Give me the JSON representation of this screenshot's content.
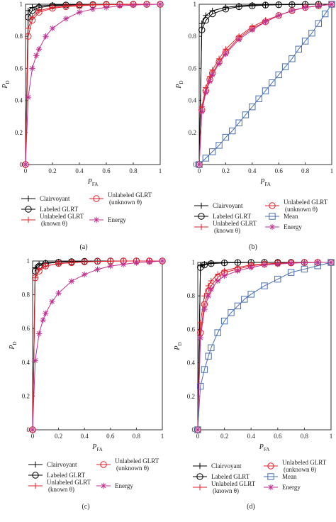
{
  "figure": {
    "panels": [
      {
        "label": "(a)"
      },
      {
        "label": "(b)"
      },
      {
        "label": "(c)"
      },
      {
        "label": "(d)"
      }
    ]
  },
  "chart_data": [
    {
      "type": "line",
      "panel": "(a)",
      "xlabel": "P",
      "xlabel_sub": "FA",
      "ylabel": "P",
      "ylabel_sub": "D",
      "xlim": [
        0,
        1
      ],
      "ylim": [
        0,
        1
      ],
      "grid": false,
      "xticks": [
        "0",
        "0.2",
        "0.4",
        "0.6",
        "0.8",
        "1"
      ],
      "yticks": [
        "0",
        "0.2",
        "0.4",
        "0.6",
        "0.8",
        "1"
      ],
      "legend_position": "below",
      "series": [
        {
          "name": "Clairvoyant",
          "marker": "+",
          "color": "#000000",
          "x": [
            0,
            0.02,
            0.05,
            0.1,
            0.2,
            0.3,
            0.4,
            0.5,
            0.6,
            0.7,
            0.8,
            0.9,
            1
          ],
          "y": [
            0,
            0.96,
            0.98,
            0.99,
            0.995,
            0.997,
            0.998,
            0.999,
            0.999,
            1,
            1,
            1,
            1
          ]
        },
        {
          "name": "Labeled GLRT",
          "marker": "o",
          "color": "#000000",
          "x": [
            0,
            0.02,
            0.05,
            0.1,
            0.2,
            0.3,
            0.4,
            0.5,
            0.6,
            0.7,
            0.8,
            0.9,
            1
          ],
          "y": [
            0,
            0.92,
            0.96,
            0.98,
            0.99,
            0.995,
            0.997,
            0.998,
            0.999,
            1,
            1,
            1,
            1
          ]
        },
        {
          "name": "Unlabeled GLRT (known θ)",
          "marker": "+",
          "color": "#e0202a",
          "x": [
            0,
            0.02,
            0.05,
            0.1,
            0.2,
            0.3,
            0.4,
            0.5,
            0.6,
            0.7,
            0.8,
            0.9,
            1
          ],
          "y": [
            0,
            0.85,
            0.92,
            0.96,
            0.98,
            0.99,
            0.995,
            0.997,
            0.998,
            0.999,
            1,
            1,
            1
          ]
        },
        {
          "name": "Unlabeled GLRT (unknown θ)",
          "marker": "o",
          "color": "#e0202a",
          "x": [
            0,
            0.02,
            0.05,
            0.1,
            0.2,
            0.3,
            0.4,
            0.5,
            0.6,
            0.7,
            0.8,
            0.9,
            1
          ],
          "y": [
            0,
            0.8,
            0.9,
            0.95,
            0.975,
            0.985,
            0.99,
            0.995,
            0.997,
            0.998,
            0.999,
            1,
            1
          ]
        },
        {
          "name": "Energy",
          "marker": "*",
          "color": "#c03090",
          "x": [
            0,
            0.02,
            0.05,
            0.08,
            0.1,
            0.15,
            0.2,
            0.3,
            0.4,
            0.5,
            0.6,
            0.7,
            0.8,
            0.9,
            1
          ],
          "y": [
            0,
            0.42,
            0.6,
            0.68,
            0.72,
            0.8,
            0.85,
            0.91,
            0.95,
            0.97,
            0.98,
            0.99,
            0.995,
            0.998,
            1
          ]
        }
      ]
    },
    {
      "type": "line",
      "panel": "(b)",
      "xlabel": "P",
      "xlabel_sub": "FA",
      "ylabel": "P",
      "ylabel_sub": "D",
      "xlim": [
        0,
        1
      ],
      "ylim": [
        0,
        1
      ],
      "grid": false,
      "xticks": [
        "0",
        "0.2",
        "0.4",
        "0.6",
        "0.8",
        "1"
      ],
      "yticks": [
        "0",
        "0.2",
        "0.4",
        "0.6",
        "0.8",
        "1"
      ],
      "legend_position": "below",
      "series": [
        {
          "name": "Clairvoyant",
          "marker": "+",
          "color": "#000000",
          "x": [
            0,
            0.02,
            0.05,
            0.1,
            0.2,
            0.3,
            0.4,
            0.5,
            0.6,
            0.7,
            0.8,
            0.9,
            1
          ],
          "y": [
            0,
            0.88,
            0.93,
            0.96,
            0.98,
            0.99,
            0.995,
            0.997,
            0.998,
            0.999,
            1,
            1,
            1
          ]
        },
        {
          "name": "Labeled GLRT",
          "marker": "o",
          "color": "#000000",
          "x": [
            0,
            0.02,
            0.05,
            0.1,
            0.2,
            0.3,
            0.4,
            0.5,
            0.6,
            0.7,
            0.8,
            0.9,
            1
          ],
          "y": [
            0,
            0.84,
            0.9,
            0.94,
            0.97,
            0.985,
            0.99,
            0.995,
            0.997,
            0.998,
            0.999,
            1,
            1
          ]
        },
        {
          "name": "Unlabeled GLRT (known θ)",
          "marker": "+",
          "color": "#e0202a",
          "x": [
            0,
            0.02,
            0.05,
            0.08,
            0.1,
            0.15,
            0.2,
            0.3,
            0.4,
            0.5,
            0.6,
            0.7,
            0.8,
            0.9,
            1
          ],
          "y": [
            0,
            0.36,
            0.48,
            0.55,
            0.59,
            0.66,
            0.72,
            0.8,
            0.86,
            0.9,
            0.93,
            0.96,
            0.98,
            0.99,
            1
          ]
        },
        {
          "name": "Unlabeled GLRT (unknown θ)",
          "marker": "o",
          "color": "#e0202a",
          "x": [
            0,
            0.02,
            0.05,
            0.08,
            0.1,
            0.15,
            0.2,
            0.3,
            0.4,
            0.5,
            0.6,
            0.7,
            0.8,
            0.9,
            1
          ],
          "y": [
            0,
            0.34,
            0.46,
            0.53,
            0.57,
            0.64,
            0.7,
            0.79,
            0.85,
            0.89,
            0.93,
            0.96,
            0.98,
            0.99,
            1
          ]
        },
        {
          "name": "Mean",
          "marker": "s",
          "color": "#4a6fb0",
          "x": [
            0,
            0.05,
            0.1,
            0.15,
            0.2,
            0.25,
            0.3,
            0.35,
            0.4,
            0.45,
            0.5,
            0.55,
            0.6,
            0.65,
            0.7,
            0.75,
            0.8,
            0.85,
            0.9,
            0.95,
            1
          ],
          "y": [
            0,
            0.04,
            0.08,
            0.12,
            0.17,
            0.21,
            0.26,
            0.31,
            0.36,
            0.41,
            0.46,
            0.51,
            0.56,
            0.61,
            0.66,
            0.72,
            0.77,
            0.82,
            0.88,
            0.94,
            1
          ]
        },
        {
          "name": "Energy",
          "marker": "*",
          "color": "#c03090",
          "x": [
            0,
            0.02,
            0.05,
            0.08,
            0.1,
            0.15,
            0.2,
            0.3,
            0.4,
            0.5,
            0.6,
            0.7,
            0.8,
            0.9,
            1
          ],
          "y": [
            0,
            0.33,
            0.45,
            0.52,
            0.56,
            0.63,
            0.69,
            0.78,
            0.84,
            0.89,
            0.93,
            0.96,
            0.98,
            0.99,
            1
          ]
        }
      ]
    },
    {
      "type": "line",
      "panel": "(c)",
      "xlabel": "P",
      "xlabel_sub": "FA",
      "ylabel": "P",
      "ylabel_sub": "D",
      "xlim": [
        0,
        1
      ],
      "ylim": [
        0,
        1
      ],
      "grid": false,
      "xticks": [
        "0",
        "0.2",
        "0.4",
        "0.6",
        "0.8",
        "1"
      ],
      "yticks": [
        "0",
        "0.2",
        "0.4",
        "0.6",
        "0.8",
        "1"
      ],
      "legend_position": "below",
      "series": [
        {
          "name": "Clairvoyant",
          "marker": "+",
          "color": "#000000",
          "x": [
            0,
            0.02,
            0.05,
            0.1,
            0.2,
            0.3,
            0.4,
            0.5,
            0.6,
            0.7,
            0.8,
            0.9,
            1
          ],
          "y": [
            0,
            0.96,
            0.98,
            0.99,
            0.995,
            0.997,
            0.998,
            0.999,
            1,
            1,
            1,
            1,
            1
          ]
        },
        {
          "name": "Labeled GLRT",
          "marker": "o",
          "color": "#000000",
          "x": [
            0,
            0.02,
            0.05,
            0.1,
            0.2,
            0.3,
            0.4,
            0.5,
            0.6,
            0.7,
            0.8,
            0.9,
            1
          ],
          "y": [
            0,
            0.94,
            0.97,
            0.985,
            0.993,
            0.996,
            0.998,
            0.999,
            1,
            1,
            1,
            1,
            1
          ]
        },
        {
          "name": "Unlabeled GLRT (known θ)",
          "marker": "+",
          "color": "#e0202a",
          "x": [
            0,
            0.02,
            0.05,
            0.1,
            0.2,
            0.3,
            0.4,
            0.5,
            0.6,
            0.7,
            0.8,
            0.9,
            1
          ],
          "y": [
            0,
            0.9,
            0.95,
            0.97,
            0.985,
            0.99,
            0.995,
            0.997,
            0.999,
            1,
            1,
            1,
            1
          ]
        },
        {
          "name": "Unlabeled GLRT (unknown θ)",
          "marker": "o",
          "color": "#e0202a",
          "x": [
            0,
            0.02,
            0.05,
            0.1,
            0.2,
            0.3,
            0.4,
            0.5,
            0.6,
            0.7,
            0.8,
            0.9,
            1
          ],
          "y": [
            0,
            0.9,
            0.94,
            0.97,
            0.985,
            0.99,
            0.995,
            0.997,
            0.999,
            1,
            1,
            1,
            1
          ]
        },
        {
          "name": "Energy",
          "marker": "*",
          "color": "#c03090",
          "x": [
            0,
            0.02,
            0.05,
            0.08,
            0.1,
            0.15,
            0.2,
            0.3,
            0.4,
            0.5,
            0.6,
            0.7,
            0.8,
            0.9,
            1
          ],
          "y": [
            0,
            0.41,
            0.57,
            0.65,
            0.69,
            0.76,
            0.81,
            0.88,
            0.92,
            0.95,
            0.97,
            0.98,
            0.99,
            0.995,
            1
          ]
        }
      ]
    },
    {
      "type": "line",
      "panel": "(d)",
      "xlabel": "P",
      "xlabel_sub": "FA",
      "ylabel": "P",
      "ylabel_sub": "D",
      "xlim": [
        0,
        1
      ],
      "ylim": [
        0,
        1
      ],
      "grid": false,
      "xticks": [
        "0",
        "0.2",
        "0.4",
        "0.6",
        "0.8",
        "1"
      ],
      "yticks": [
        "0",
        "0.2",
        "0.4",
        "0.6",
        "0.8",
        "1"
      ],
      "legend_position": "below",
      "series": [
        {
          "name": "Clairvoyant",
          "marker": "+",
          "color": "#000000",
          "x": [
            0,
            0.02,
            0.05,
            0.1,
            0.2,
            0.3,
            0.4,
            0.5,
            0.6,
            0.7,
            0.8,
            0.9,
            1
          ],
          "y": [
            0,
            0.98,
            0.99,
            0.995,
            0.998,
            0.999,
            1,
            1,
            1,
            1,
            1,
            1,
            1
          ]
        },
        {
          "name": "Labeled GLRT",
          "marker": "o",
          "color": "#000000",
          "x": [
            0,
            0.02,
            0.05,
            0.1,
            0.2,
            0.3,
            0.4,
            0.5,
            0.6,
            0.7,
            0.8,
            0.9,
            1
          ],
          "y": [
            0,
            0.97,
            0.985,
            0.993,
            0.997,
            0.999,
            1,
            1,
            1,
            1,
            1,
            1,
            1
          ]
        },
        {
          "name": "Unlabeled GLRT (known θ)",
          "marker": "+",
          "color": "#e0202a",
          "x": [
            0,
            0.02,
            0.05,
            0.08,
            0.1,
            0.15,
            0.2,
            0.3,
            0.4,
            0.5,
            0.6,
            0.7,
            0.8,
            0.9,
            1
          ],
          "y": [
            0,
            0.64,
            0.8,
            0.86,
            0.89,
            0.93,
            0.95,
            0.97,
            0.985,
            0.99,
            0.995,
            0.997,
            0.999,
            1,
            1
          ]
        },
        {
          "name": "Unlabeled GLRT (unknown θ)",
          "marker": "o",
          "color": "#e0202a",
          "x": [
            0,
            0.02,
            0.05,
            0.08,
            0.1,
            0.15,
            0.2,
            0.3,
            0.4,
            0.5,
            0.6,
            0.7,
            0.8,
            0.9,
            1
          ],
          "y": [
            0,
            0.58,
            0.75,
            0.83,
            0.86,
            0.91,
            0.94,
            0.96,
            0.98,
            0.99,
            0.995,
            0.997,
            0.999,
            1,
            1
          ]
        },
        {
          "name": "Mean",
          "marker": "s",
          "color": "#4a6fb0",
          "x": [
            0,
            0.02,
            0.05,
            0.08,
            0.1,
            0.15,
            0.2,
            0.25,
            0.3,
            0.35,
            0.4,
            0.5,
            0.6,
            0.7,
            0.8,
            0.9,
            1
          ],
          "y": [
            0,
            0.26,
            0.36,
            0.44,
            0.49,
            0.58,
            0.65,
            0.7,
            0.74,
            0.78,
            0.81,
            0.86,
            0.9,
            0.94,
            0.96,
            0.98,
            1
          ]
        },
        {
          "name": "Energy",
          "marker": "*",
          "color": "#c03090",
          "x": [
            0,
            0.02,
            0.05,
            0.08,
            0.1,
            0.15,
            0.2,
            0.3,
            0.4,
            0.5,
            0.6,
            0.7,
            0.8,
            0.9,
            1
          ],
          "y": [
            0,
            0.55,
            0.72,
            0.8,
            0.84,
            0.89,
            0.92,
            0.95,
            0.97,
            0.985,
            0.99,
            0.995,
            0.998,
            1,
            1
          ]
        }
      ]
    }
  ],
  "legend": {
    "entries": [
      {
        "key": "clairvoyant",
        "line1": "Clairvoyant",
        "line2": ""
      },
      {
        "key": "labeled",
        "line1": "Labeled GLRT",
        "line2": ""
      },
      {
        "key": "unl_known",
        "line1": "Unlabeled GLRT",
        "line2": "(known θ)"
      },
      {
        "key": "unl_unknown",
        "line1": "Unlabeled GLRT",
        "line2": "(unknown θ)"
      },
      {
        "key": "mean",
        "line1": "Mean",
        "line2": ""
      },
      {
        "key": "energy",
        "line1": "Energy",
        "line2": ""
      }
    ]
  }
}
